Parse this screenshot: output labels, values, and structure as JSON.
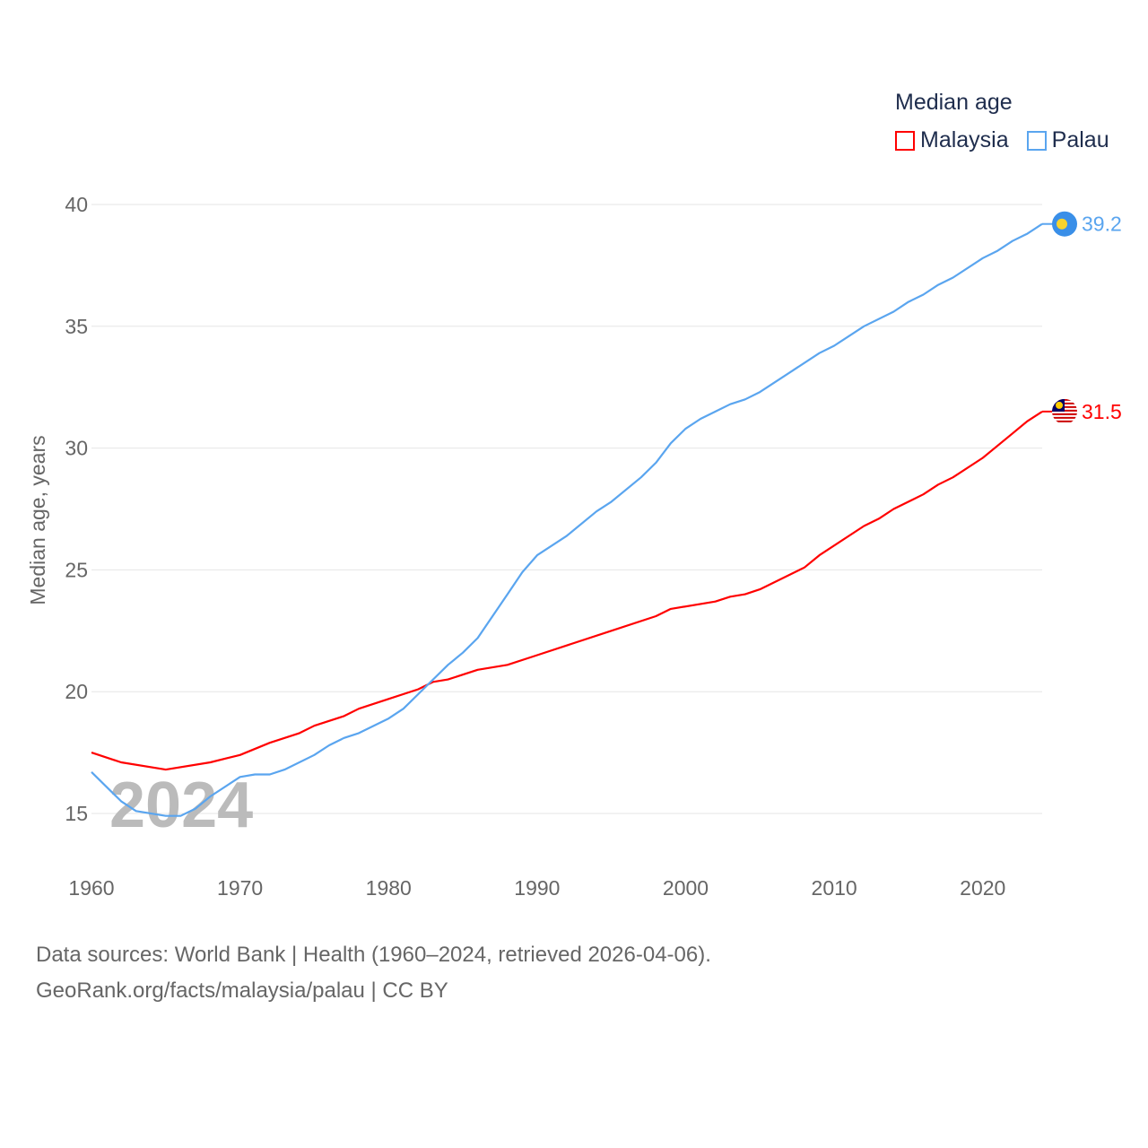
{
  "chart_data": {
    "type": "line",
    "title": "Median age",
    "ylabel": "Median age, years",
    "xlabel": "",
    "xlim": [
      1960,
      2024
    ],
    "ylim": [
      15,
      40
    ],
    "x_ticks": [
      1960,
      1970,
      1980,
      1990,
      2000,
      2010,
      2020
    ],
    "y_ticks": [
      15,
      20,
      25,
      30,
      35,
      40
    ],
    "grid": true,
    "legend_position": "top-right",
    "year_label": "2024",
    "series": [
      {
        "name": "Malaysia",
        "color": "#ff0000",
        "end_label": "31.5",
        "x": [
          1960,
          1962,
          1965,
          1968,
          1970,
          1972,
          1974,
          1975,
          1977,
          1978,
          1980,
          1982,
          1983,
          1984,
          1986,
          1988,
          1990,
          1995,
          1998,
          1999,
          2002,
          2003,
          2004,
          2005,
          2008,
          2009,
          2012,
          2013,
          2014,
          2016,
          2017,
          2018,
          2020,
          2022,
          2023,
          2024
        ],
        "y": [
          17.5,
          17.1,
          16.8,
          17.1,
          17.4,
          17.9,
          18.3,
          18.6,
          19.0,
          19.3,
          19.7,
          20.1,
          20.4,
          20.5,
          20.9,
          21.1,
          21.5,
          22.5,
          23.1,
          23.4,
          23.7,
          23.9,
          24.0,
          24.2,
          25.1,
          25.6,
          26.8,
          27.1,
          27.5,
          28.1,
          28.5,
          28.8,
          29.6,
          30.6,
          31.1,
          31.5
        ]
      },
      {
        "name": "Palau",
        "color": "#5aa5ef",
        "end_label": "39.2",
        "x": [
          1960,
          1962,
          1963,
          1965,
          1966,
          1967,
          1968,
          1970,
          1971,
          1972,
          1973,
          1975,
          1976,
          1977,
          1978,
          1980,
          1981,
          1982,
          1983,
          1984,
          1985,
          1986,
          1987,
          1988,
          1989,
          1990,
          1992,
          1994,
          1995,
          1997,
          1998,
          1999,
          2000,
          2001,
          2002,
          2003,
          2004,
          2005,
          2007,
          2009,
          2010,
          2012,
          2014,
          2015,
          2016,
          2017,
          2018,
          2020,
          2021,
          2022,
          2023,
          2024
        ],
        "y": [
          16.7,
          15.5,
          15.1,
          14.9,
          14.9,
          15.2,
          15.7,
          16.5,
          16.6,
          16.6,
          16.8,
          17.4,
          17.8,
          18.1,
          18.3,
          18.9,
          19.3,
          19.9,
          20.5,
          21.1,
          21.6,
          22.2,
          23.1,
          24.0,
          24.9,
          25.6,
          26.4,
          27.4,
          27.8,
          28.8,
          29.4,
          30.2,
          30.8,
          31.2,
          31.5,
          31.8,
          32.0,
          32.3,
          33.1,
          33.9,
          34.2,
          35.0,
          35.6,
          36.0,
          36.3,
          36.7,
          37.0,
          37.8,
          38.1,
          38.5,
          38.8,
          39.2
        ]
      }
    ]
  },
  "source": {
    "line1": "Data sources: World Bank | Health (1960–2024, retrieved 2026-04-06).",
    "line2": "GeoRank.org/facts/malaysia/palau | CC BY"
  }
}
